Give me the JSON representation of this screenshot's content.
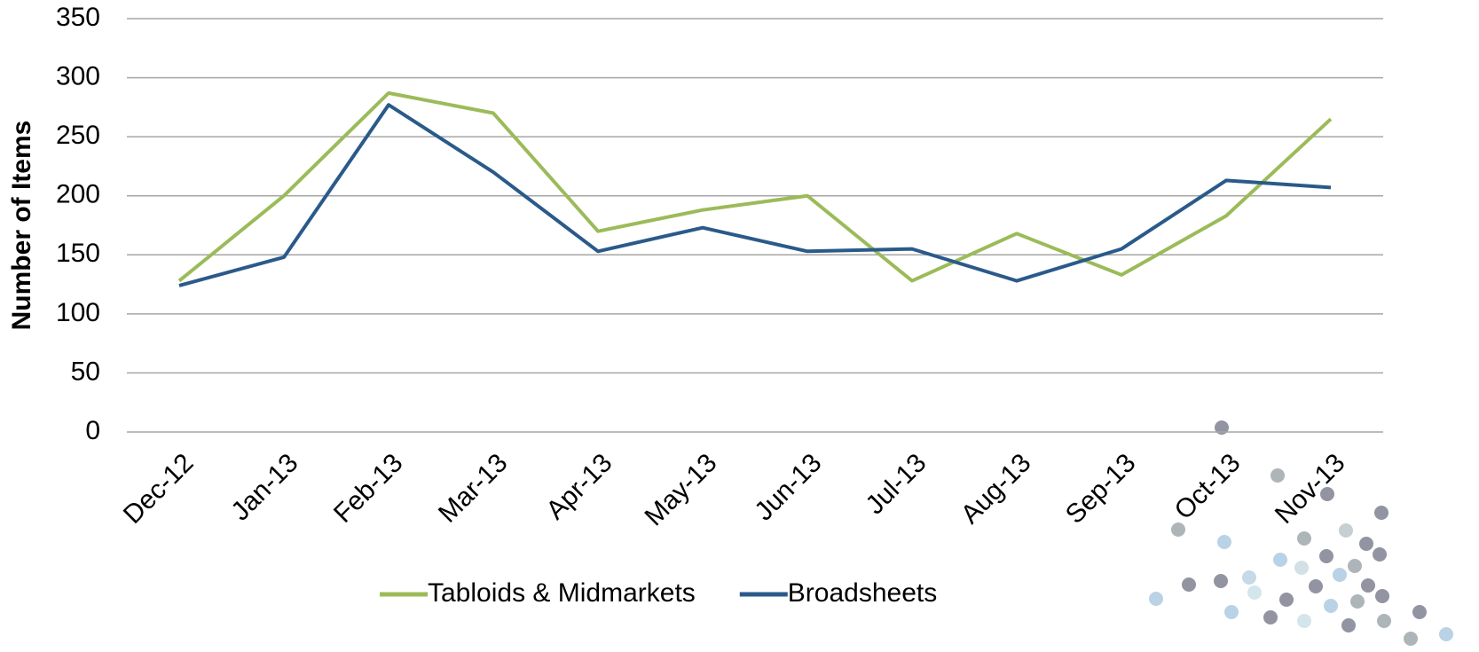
{
  "chart_data": {
    "type": "line",
    "y_label": "Number of Items",
    "categories": [
      "Dec-12",
      "Jan-13",
      "Feb-13",
      "Mar-13",
      "Apr-13",
      "May-13",
      "Jun-13",
      "Jul-13",
      "Aug-13",
      "Sep-13",
      "Oct-13",
      "Nov-13"
    ],
    "series": [
      {
        "name": "Tabloids & Midmarkets",
        "color": "#9bbb59",
        "values": [
          128,
          200,
          287,
          270,
          170,
          188,
          200,
          128,
          168,
          133,
          183,
          265
        ]
      },
      {
        "name": "Broadsheets",
        "color": "#2a5a8a",
        "values": [
          124,
          148,
          277,
          220,
          153,
          173,
          153,
          155,
          128,
          155,
          213,
          207
        ]
      }
    ],
    "ylim": [
      0,
      350
    ],
    "yticks": [
      0,
      50,
      100,
      150,
      200,
      250,
      300,
      350
    ],
    "grid": true,
    "legend": "bottom"
  }
}
